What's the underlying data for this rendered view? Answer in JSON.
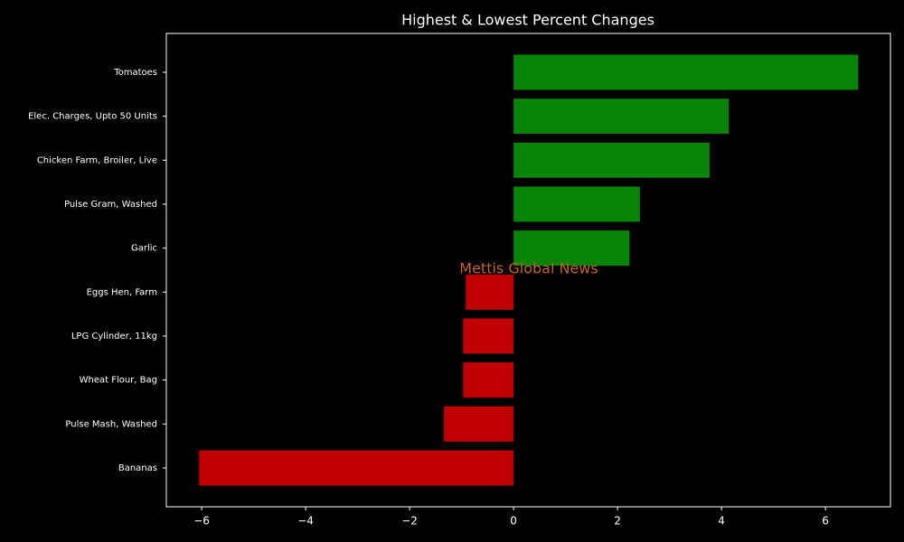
{
  "chart_data": {
    "type": "barh",
    "title": "Highest & Lowest Percent Changes",
    "watermark": "Mettis Global News",
    "categories": [
      "Tomatoes",
      "Elec. Charges, Upto 50 Units",
      "Chicken Farm, Broiler, Live",
      "Pulse Gram, Washed",
      "Garlic",
      "Eggs Hen, Farm",
      "LPG Cylinder, 11kg",
      "Wheat Flour, Bag",
      "Pulse Mash, Washed",
      "Bananas"
    ],
    "values": [
      6.63,
      4.14,
      3.77,
      2.43,
      2.23,
      -0.92,
      -0.97,
      -0.97,
      -1.34,
      -6.05
    ],
    "colors": [
      "#088408",
      "#088408",
      "#088408",
      "#088408",
      "#088408",
      "#c00000",
      "#c00000",
      "#c00000",
      "#c00000",
      "#c00000"
    ],
    "xlim": [
      -6.68,
      7.25
    ],
    "xticks": [
      {
        "value": -6,
        "label": "−6"
      },
      {
        "value": -4,
        "label": "−4"
      },
      {
        "value": -2,
        "label": "−2"
      },
      0,
      2,
      4,
      6
    ]
  }
}
